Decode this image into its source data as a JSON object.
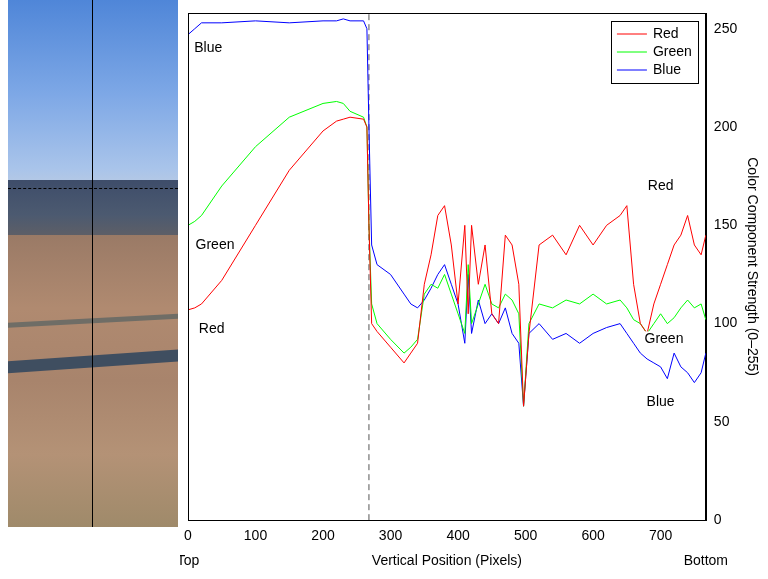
{
  "chart_data": {
    "type": "line",
    "x_label": "Vertical Position (Pixels)",
    "y_label": "Color Component Strength (0–255)",
    "axis_end_labels": {
      "start": "Top",
      "end": "Bottom"
    },
    "x": [
      0,
      10,
      20,
      50,
      100,
      150,
      200,
      220,
      230,
      240,
      260,
      265,
      268,
      272,
      280,
      300,
      320,
      330,
      340,
      350,
      360,
      370,
      380,
      390,
      400,
      410,
      415,
      420,
      430,
      440,
      450,
      460,
      470,
      480,
      490,
      497,
      505,
      520,
      540,
      560,
      580,
      600,
      620,
      640,
      650,
      660,
      670,
      680,
      690,
      700,
      710,
      720,
      730,
      740,
      750,
      760,
      767
    ],
    "series": [
      {
        "name": "Red",
        "color": "#ff0000",
        "line_style": "solid",
        "values": [
          107,
          108,
          110,
          122,
          150,
          178,
          198,
          203,
          204,
          205,
          204,
          200,
          150,
          100,
          96,
          88,
          80,
          85,
          90,
          120,
          135,
          155,
          160,
          140,
          110,
          150,
          105,
          150,
          120,
          140,
          105,
          100,
          145,
          140,
          120,
          58,
          95,
          140,
          145,
          135,
          150,
          140,
          150,
          155,
          160,
          120,
          100,
          95,
          110,
          120,
          130,
          140,
          145,
          155,
          140,
          135,
          145
        ]
      },
      {
        "name": "Green",
        "color": "#00ff00",
        "line_style": "solid",
        "values": [
          150,
          152,
          155,
          170,
          190,
          205,
          212,
          213,
          212,
          208,
          205,
          200,
          150,
          110,
          100,
          92,
          85,
          88,
          92,
          115,
          120,
          118,
          125,
          115,
          105,
          95,
          130,
          100,
          110,
          120,
          110,
          108,
          115,
          112,
          105,
          58,
          100,
          110,
          108,
          112,
          110,
          115,
          110,
          112,
          108,
          102,
          100,
          95,
          100,
          105,
          100,
          103,
          108,
          112,
          108,
          110,
          102
        ]
      },
      {
        "name": "Blue",
        "color": "#0000ff",
        "line_style": "solid",
        "values": [
          247,
          250,
          253,
          253,
          254,
          253,
          254,
          254,
          255,
          254,
          254,
          250,
          200,
          140,
          130,
          125,
          115,
          110,
          108,
          112,
          118,
          125,
          130,
          120,
          110,
          90,
          125,
          95,
          112,
          100,
          105,
          100,
          108,
          95,
          90,
          58,
          95,
          100,
          92,
          95,
          90,
          95,
          98,
          100,
          95,
          90,
          85,
          82,
          80,
          78,
          72,
          85,
          78,
          75,
          70,
          75,
          85
        ]
      }
    ],
    "annotations": [
      {
        "text": "Blue",
        "x": 30,
        "y": 240
      },
      {
        "text": "Green",
        "x": 40,
        "y": 140
      },
      {
        "text": "Red",
        "x": 35,
        "y": 97
      },
      {
        "text": "Red",
        "x": 700,
        "y": 170
      },
      {
        "text": "Green",
        "x": 705,
        "y": 92
      },
      {
        "text": "Blue",
        "x": 700,
        "y": 60
      }
    ],
    "vertical_line": {
      "x": 268,
      "line_style": "dashed"
    },
    "xlim": [
      0,
      767
    ],
    "xticks": [
      0,
      100,
      200,
      300,
      400,
      500,
      600,
      700
    ],
    "ylim": [
      0,
      258
    ],
    "yticks": [
      0,
      50,
      100,
      150,
      200,
      250
    ],
    "grid": false,
    "legend": "upper right"
  }
}
